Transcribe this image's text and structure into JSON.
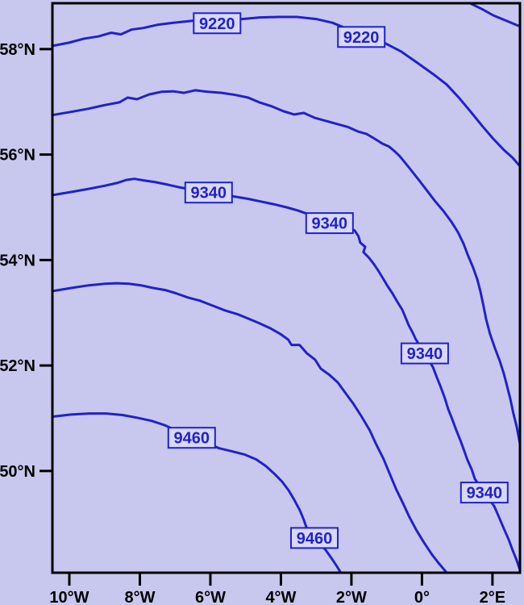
{
  "chart_data": {
    "type": "contour",
    "title": "",
    "xlabel": "",
    "ylabel": "",
    "grid": false,
    "legend": "none",
    "colors": {
      "background": "#c8c8ee",
      "line": "#2121cd",
      "label_box_fill": "#d8d8f8",
      "axis": "#000000"
    },
    "x_axis": {
      "range": [
        -10.48,
        2.78
      ],
      "ticks": [
        {
          "label": "10°W",
          "lon": -10
        },
        {
          "label": "8°W",
          "lon": -8
        },
        {
          "label": "6°W",
          "lon": -6
        },
        {
          "label": "4°W",
          "lon": -4
        },
        {
          "label": "2°W",
          "lon": -2
        },
        {
          "label": "0°",
          "lon": 0
        },
        {
          "label": "2°E",
          "lon": 2
        }
      ]
    },
    "y_axis": {
      "range": [
        48.07,
        58.87
      ],
      "ticks": [
        {
          "label": "58°N",
          "lat": 58
        },
        {
          "label": "56°N",
          "lat": 56
        },
        {
          "label": "54°N",
          "lat": 54
        },
        {
          "label": "52°N",
          "lat": 52
        },
        {
          "label": "50°N",
          "lat": 50
        }
      ]
    },
    "contours": [
      {
        "label": "",
        "labels": [],
        "path": [
          [
            1.36,
            58.87
          ],
          [
            1.7,
            58.76
          ],
          [
            2.02,
            58.64
          ],
          [
            2.39,
            58.54
          ],
          [
            2.78,
            58.43
          ]
        ]
      },
      {
        "label": "9220",
        "labels": [
          {
            "lon": -5.81,
            "lat": 58.49
          },
          {
            "lon": -1.72,
            "lat": 58.23
          }
        ],
        "path": [
          [
            -10.48,
            58.06
          ],
          [
            -10.02,
            58.12
          ],
          [
            -9.57,
            58.2
          ],
          [
            -9.18,
            58.24
          ],
          [
            -8.81,
            58.31
          ],
          [
            -8.54,
            58.28
          ],
          [
            -8.24,
            58.37
          ],
          [
            -7.9,
            58.4
          ],
          [
            -7.51,
            58.46
          ],
          [
            -7.05,
            58.5
          ],
          [
            -6.48,
            58.54
          ],
          [
            -5.81,
            58.5
          ],
          [
            -5.1,
            58.57
          ],
          [
            -4.6,
            58.6
          ],
          [
            -4.07,
            58.61
          ],
          [
            -3.55,
            58.61
          ],
          [
            -3.0,
            58.57
          ],
          [
            -2.54,
            58.5
          ],
          [
            -2.1,
            58.38
          ],
          [
            -1.72,
            58.23
          ],
          [
            -1.04,
            58.11
          ],
          [
            -0.58,
            57.95
          ],
          [
            -0.13,
            57.74
          ],
          [
            0.31,
            57.53
          ],
          [
            0.7,
            57.33
          ],
          [
            1.06,
            57.07
          ],
          [
            1.41,
            56.79
          ],
          [
            1.7,
            56.55
          ],
          [
            2.02,
            56.3
          ],
          [
            2.32,
            56.09
          ],
          [
            2.57,
            55.94
          ],
          [
            2.78,
            55.78
          ]
        ]
      },
      {
        "label": "",
        "labels": [],
        "path": [
          [
            -10.48,
            56.75
          ],
          [
            -9.95,
            56.81
          ],
          [
            -9.45,
            56.87
          ],
          [
            -8.99,
            56.94
          ],
          [
            -8.58,
            56.99
          ],
          [
            -8.35,
            57.08
          ],
          [
            -8.08,
            57.05
          ],
          [
            -7.74,
            57.14
          ],
          [
            -7.39,
            57.19
          ],
          [
            -7.05,
            57.2
          ],
          [
            -6.75,
            57.17
          ],
          [
            -6.43,
            57.22
          ],
          [
            -6.07,
            57.19
          ],
          [
            -5.68,
            57.17
          ],
          [
            -5.29,
            57.13
          ],
          [
            -4.93,
            57.08
          ],
          [
            -4.61,
            56.99
          ],
          [
            -4.24,
            56.91
          ],
          [
            -3.92,
            56.82
          ],
          [
            -3.62,
            56.76
          ],
          [
            -3.35,
            56.79
          ],
          [
            -3.05,
            56.7
          ],
          [
            -2.73,
            56.64
          ],
          [
            -2.41,
            56.58
          ],
          [
            -2.09,
            56.52
          ],
          [
            -1.82,
            56.44
          ],
          [
            -1.57,
            56.39
          ],
          [
            -1.34,
            56.3
          ],
          [
            -1.13,
            56.21
          ],
          [
            -0.93,
            56.15
          ],
          [
            -0.77,
            56.06
          ],
          [
            -0.63,
            55.97
          ],
          [
            -0.47,
            55.84
          ],
          [
            -0.29,
            55.69
          ],
          [
            -0.08,
            55.51
          ],
          [
            0.15,
            55.31
          ],
          [
            0.38,
            55.11
          ],
          [
            0.61,
            54.93
          ],
          [
            0.83,
            54.73
          ],
          [
            1.02,
            54.53
          ],
          [
            1.18,
            54.31
          ],
          [
            1.31,
            54.08
          ],
          [
            1.45,
            53.86
          ],
          [
            1.57,
            53.63
          ],
          [
            1.66,
            53.4
          ],
          [
            1.75,
            53.12
          ],
          [
            1.82,
            52.88
          ],
          [
            1.93,
            52.6
          ],
          [
            2.07,
            52.33
          ],
          [
            2.21,
            52.08
          ],
          [
            2.32,
            51.85
          ],
          [
            2.41,
            51.62
          ],
          [
            2.5,
            51.38
          ],
          [
            2.59,
            51.1
          ],
          [
            2.69,
            50.83
          ],
          [
            2.78,
            50.51
          ]
        ]
      },
      {
        "label": "9340",
        "labels": [
          {
            "lon": -6.05,
            "lat": 55.28
          },
          {
            "lon": -2.62,
            "lat": 54.7
          },
          {
            "lon": 0.08,
            "lat": 52.23
          },
          {
            "lon": 1.77,
            "lat": 49.59
          }
        ],
        "path": [
          [
            -10.48,
            55.23
          ],
          [
            -9.95,
            55.29
          ],
          [
            -9.45,
            55.35
          ],
          [
            -8.99,
            55.41
          ],
          [
            -8.65,
            55.46
          ],
          [
            -8.38,
            55.52
          ],
          [
            -8.15,
            55.54
          ],
          [
            -7.9,
            55.51
          ],
          [
            -7.58,
            55.48
          ],
          [
            -7.21,
            55.43
          ],
          [
            -6.89,
            55.38
          ],
          [
            -6.05,
            55.28
          ],
          [
            -5.29,
            55.2
          ],
          [
            -4.93,
            55.16
          ],
          [
            -4.57,
            55.11
          ],
          [
            -4.21,
            55.06
          ],
          [
            -3.84,
            55.0
          ],
          [
            -3.52,
            54.94
          ],
          [
            -3.1,
            54.84
          ],
          [
            -2.62,
            54.7
          ],
          [
            -1.91,
            54.56
          ],
          [
            -1.8,
            54.45
          ],
          [
            -1.75,
            54.33
          ],
          [
            -1.61,
            54.25
          ],
          [
            -1.66,
            54.15
          ],
          [
            -1.5,
            54.04
          ],
          [
            -1.36,
            53.92
          ],
          [
            -1.23,
            53.79
          ],
          [
            -1.11,
            53.66
          ],
          [
            -0.97,
            53.5
          ],
          [
            -0.84,
            53.37
          ],
          [
            -0.7,
            53.21
          ],
          [
            -0.56,
            53.06
          ],
          [
            -0.47,
            52.92
          ],
          [
            -0.38,
            52.77
          ],
          [
            -0.26,
            52.62
          ],
          [
            -0.17,
            52.49
          ],
          [
            0.08,
            52.23
          ],
          [
            0.31,
            51.97
          ],
          [
            0.42,
            51.78
          ],
          [
            0.54,
            51.58
          ],
          [
            0.65,
            51.38
          ],
          [
            0.74,
            51.18
          ],
          [
            0.86,
            50.98
          ],
          [
            0.97,
            50.78
          ],
          [
            1.09,
            50.58
          ],
          [
            1.2,
            50.38
          ],
          [
            1.29,
            50.21
          ],
          [
            1.41,
            50.03
          ],
          [
            1.5,
            49.85
          ],
          [
            1.77,
            49.59
          ],
          [
            2.05,
            49.33
          ],
          [
            2.18,
            49.13
          ],
          [
            2.32,
            48.91
          ],
          [
            2.46,
            48.7
          ],
          [
            2.57,
            48.5
          ],
          [
            2.69,
            48.3
          ],
          [
            2.78,
            48.12
          ]
        ]
      },
      {
        "label": "",
        "labels": [],
        "path": [
          [
            -10.48,
            53.41
          ],
          [
            -9.95,
            53.47
          ],
          [
            -9.45,
            53.52
          ],
          [
            -8.99,
            53.55
          ],
          [
            -8.65,
            53.56
          ],
          [
            -8.31,
            53.55
          ],
          [
            -7.97,
            53.52
          ],
          [
            -7.62,
            53.47
          ],
          [
            -7.28,
            53.43
          ],
          [
            -6.98,
            53.37
          ],
          [
            -6.64,
            53.29
          ],
          [
            -6.3,
            53.23
          ],
          [
            -5.95,
            53.14
          ],
          [
            -5.57,
            53.04
          ],
          [
            -5.22,
            52.97
          ],
          [
            -4.93,
            52.89
          ],
          [
            -4.61,
            52.8
          ],
          [
            -4.31,
            52.71
          ],
          [
            -4.02,
            52.6
          ],
          [
            -3.79,
            52.49
          ],
          [
            -3.7,
            52.39
          ],
          [
            -3.47,
            52.39
          ],
          [
            -3.26,
            52.23
          ],
          [
            -3.03,
            52.11
          ],
          [
            -2.87,
            51.94
          ],
          [
            -2.62,
            51.82
          ],
          [
            -2.39,
            51.68
          ],
          [
            -2.17,
            51.48
          ],
          [
            -1.94,
            51.27
          ],
          [
            -1.71,
            51.03
          ],
          [
            -1.48,
            50.77
          ],
          [
            -1.3,
            50.51
          ],
          [
            -1.09,
            50.23
          ],
          [
            -0.91,
            49.94
          ],
          [
            -0.73,
            49.65
          ],
          [
            -0.54,
            49.39
          ],
          [
            -0.36,
            49.13
          ],
          [
            -0.15,
            48.87
          ],
          [
            0.06,
            48.64
          ],
          [
            0.29,
            48.41
          ],
          [
            0.49,
            48.24
          ],
          [
            0.68,
            48.09
          ]
        ]
      },
      {
        "label": "9460",
        "labels": [
          {
            "lon": -6.53,
            "lat": 50.63
          },
          {
            "lon": -3.05,
            "lat": 48.73
          }
        ],
        "path": [
          [
            -10.48,
            51.03
          ],
          [
            -9.95,
            51.07
          ],
          [
            -9.45,
            51.09
          ],
          [
            -8.95,
            51.09
          ],
          [
            -8.49,
            51.06
          ],
          [
            -8.08,
            51.01
          ],
          [
            -7.67,
            50.95
          ],
          [
            -7.3,
            50.87
          ],
          [
            -6.53,
            50.63
          ],
          [
            -5.75,
            50.43
          ],
          [
            -5.38,
            50.37
          ],
          [
            -5.02,
            50.31
          ],
          [
            -4.7,
            50.22
          ],
          [
            -4.42,
            50.09
          ],
          [
            -4.19,
            49.95
          ],
          [
            -3.97,
            49.8
          ],
          [
            -3.78,
            49.63
          ],
          [
            -3.62,
            49.45
          ],
          [
            -3.46,
            49.25
          ],
          [
            -3.35,
            49.07
          ],
          [
            -3.26,
            48.9
          ],
          [
            -3.05,
            48.73
          ],
          [
            -2.73,
            48.5
          ],
          [
            -2.57,
            48.35
          ],
          [
            -2.41,
            48.19
          ],
          [
            -2.32,
            48.09
          ]
        ]
      }
    ]
  }
}
